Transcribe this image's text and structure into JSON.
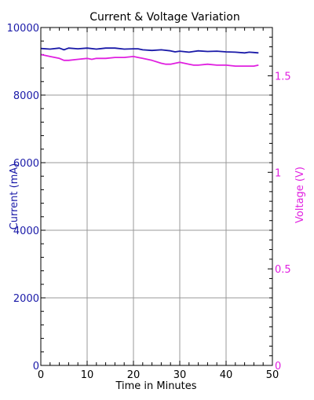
{
  "chart_data": {
    "type": "line",
    "title": "Current & Voltage Variation",
    "xlabel": "Time in Minutes",
    "ylabel_left": "Current (mA)",
    "ylabel_right": "Voltage (V)",
    "xlim": [
      0,
      50
    ],
    "ylim_left": [
      0,
      10000
    ],
    "ylim_right": [
      0,
      1.75
    ],
    "x_ticks": [
      "0",
      "10",
      "20",
      "30",
      "40",
      "50"
    ],
    "y_left_ticks": [
      "0",
      "2000",
      "4000",
      "6000",
      "8000",
      "10000"
    ],
    "y_right_ticks": [
      "0",
      "0.5",
      "1",
      "1.5"
    ],
    "grid": true,
    "colors": {
      "current": "#1a1aa8",
      "voltage": "#e020e0",
      "grid": "#999999",
      "axes": "#000000"
    },
    "series": [
      {
        "axis": "left",
        "x": [
          0,
          2,
          4,
          5,
          6,
          8,
          10,
          12,
          14,
          16,
          18,
          20,
          21,
          22,
          24,
          26,
          28,
          29,
          30,
          32,
          33,
          34,
          36,
          38,
          40,
          42,
          44,
          45,
          46,
          47
        ],
        "values": [
          9380,
          9360,
          9390,
          9340,
          9390,
          9370,
          9390,
          9360,
          9390,
          9390,
          9360,
          9370,
          9370,
          9340,
          9320,
          9340,
          9310,
          9280,
          9300,
          9270,
          9290,
          9310,
          9290,
          9300,
          9280,
          9270,
          9250,
          9270,
          9260,
          9250
        ]
      },
      {
        "axis": "right",
        "x": [
          0,
          2,
          4,
          5,
          6,
          8,
          10,
          11,
          12,
          14,
          16,
          18,
          20,
          21,
          22,
          24,
          26,
          27,
          28,
          30,
          32,
          33,
          34,
          36,
          38,
          40,
          42,
          44,
          46,
          47
        ],
        "values": [
          1.61,
          1.6,
          1.59,
          1.58,
          1.58,
          1.585,
          1.59,
          1.585,
          1.59,
          1.59,
          1.595,
          1.595,
          1.6,
          1.595,
          1.59,
          1.58,
          1.565,
          1.56,
          1.56,
          1.57,
          1.56,
          1.555,
          1.555,
          1.56,
          1.555,
          1.555,
          1.55,
          1.55,
          1.55,
          1.555
        ]
      }
    ]
  }
}
